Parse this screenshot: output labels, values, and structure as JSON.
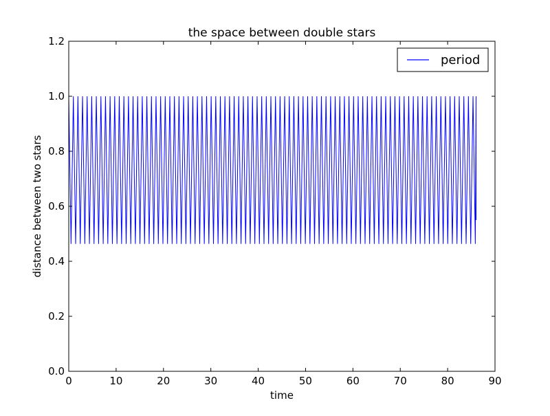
{
  "chart_data": {
    "type": "line",
    "title": "the space between double stars",
    "xlabel": "time",
    "ylabel": "distance between two stars",
    "xlim": [
      0,
      90
    ],
    "ylim": [
      0,
      1.2
    ],
    "x_ticks": [
      0,
      10,
      20,
      30,
      40,
      50,
      60,
      70,
      80,
      90
    ],
    "x_tick_labels": [
      "0",
      "10",
      "20",
      "30",
      "40",
      "50",
      "60",
      "70",
      "80",
      "90"
    ],
    "y_ticks": [
      0.0,
      0.2,
      0.4,
      0.6,
      0.8,
      1.0,
      1.2
    ],
    "y_tick_labels": [
      "0.0",
      "0.2",
      "0.4",
      "0.6",
      "0.8",
      "1.0",
      "1.2"
    ],
    "grid": false,
    "legend": {
      "position": "top-right",
      "entries": [
        "period"
      ]
    },
    "series": [
      {
        "name": "period",
        "color": "#0000ff",
        "signal": {
          "form": "oscillation",
          "max": 1.0,
          "min": 0.463,
          "period": 0.97,
          "x_start": 0,
          "x_end": 86.0,
          "end_value": 0.55
        }
      }
    ]
  }
}
